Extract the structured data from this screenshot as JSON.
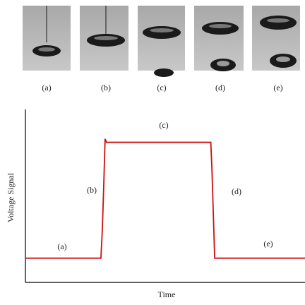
{
  "image_labels": [
    "(a)",
    "(b)",
    "(c)",
    "(d)",
    "(e)"
  ],
  "chart_data": {
    "type": "line",
    "x_label": "Time",
    "y_label": "Voltage Signal",
    "annotations": [
      "(a)",
      "(b)",
      "(c)",
      "(d)",
      "(e)"
    ],
    "x": [
      0,
      27,
      27.5,
      28,
      28.5,
      29,
      50,
      66.3,
      66.7,
      67.2,
      67.7,
      100
    ],
    "series": [
      {
        "name": "Voltage Signal",
        "color": "#cc1010",
        "values": [
          14,
          14,
          30,
          55,
          83,
          81,
          81,
          81,
          66,
          40,
          14,
          14
        ]
      }
    ],
    "xlim": [
      0,
      100
    ],
    "ylim": [
      0,
      100
    ]
  }
}
